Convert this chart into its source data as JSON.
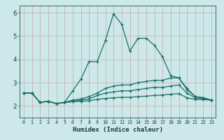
{
  "xlabel": "Humidex (Indice chaleur)",
  "bg_color": "#cce8e8",
  "grid_color": "#c8a8a8",
  "line_color": "#1a7068",
  "spine_color": "#336666",
  "xlim": [
    -0.5,
    23.5
  ],
  "ylim": [
    1.5,
    6.3
  ],
  "xticks": [
    0,
    1,
    2,
    3,
    4,
    5,
    6,
    7,
    8,
    9,
    10,
    11,
    12,
    13,
    14,
    15,
    16,
    17,
    18,
    19,
    20,
    21,
    22,
    23
  ],
  "yticks": [
    2,
    3,
    4,
    5,
    6
  ],
  "lines": [
    [
      2.55,
      2.55,
      2.15,
      2.2,
      2.1,
      2.15,
      2.65,
      3.15,
      3.9,
      3.9,
      4.8,
      5.95,
      5.5,
      4.35,
      4.9,
      4.9,
      4.6,
      4.1,
      3.3,
      3.2,
      2.7,
      2.4,
      2.35,
      2.25
    ],
    [
      2.55,
      2.55,
      2.15,
      2.2,
      2.1,
      2.15,
      2.25,
      2.3,
      2.4,
      2.55,
      2.75,
      2.85,
      2.9,
      2.9,
      3.0,
      3.05,
      3.1,
      3.1,
      3.2,
      3.2,
      2.75,
      2.4,
      2.35,
      2.25
    ],
    [
      2.55,
      2.55,
      2.15,
      2.2,
      2.1,
      2.15,
      2.2,
      2.25,
      2.3,
      2.45,
      2.55,
      2.6,
      2.65,
      2.65,
      2.7,
      2.75,
      2.8,
      2.8,
      2.85,
      2.9,
      2.55,
      2.35,
      2.3,
      2.25
    ],
    [
      2.55,
      2.55,
      2.15,
      2.2,
      2.1,
      2.15,
      2.18,
      2.2,
      2.22,
      2.28,
      2.32,
      2.35,
      2.37,
      2.37,
      2.4,
      2.42,
      2.45,
      2.47,
      2.5,
      2.53,
      2.35,
      2.28,
      2.27,
      2.25
    ]
  ]
}
